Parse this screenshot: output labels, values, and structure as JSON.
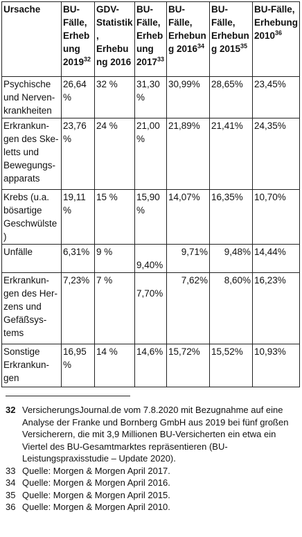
{
  "table": {
    "headers": [
      [
        "Ursache"
      ],
      [
        "BU-Fälle, Erhebung 2019",
        "32"
      ],
      [
        "GDV-Statistik, Erhebung 2016"
      ],
      [
        "BU-Fälle, Erhebung 2017",
        "33"
      ],
      [
        "BU-Fälle, Erhebung 2016",
        "34"
      ],
      [
        "BU-Fälle, Erhebung 2015",
        "35"
      ],
      [
        "BU-Fälle, Erhebung 2010",
        "36"
      ]
    ],
    "rows": [
      {
        "cause": "Psychische und Nerven-krankheiten",
        "values": [
          "26,64%",
          "32 %",
          "31,30 %",
          "30,99%",
          "28,65%",
          "23,45%"
        ]
      },
      {
        "cause": "Erkrankun-gen des Ske-letts und Bewegungs-apparats",
        "values": [
          "23,76%",
          "24 %",
          "21,00 %",
          "21,89%",
          "21,41%",
          "24,35%"
        ]
      },
      {
        "cause": "Krebs (u.a. bösartige Geschwülste)",
        "values": [
          "19,11%",
          "15 %",
          "15,90 %",
          "14,07%",
          "16,35%",
          "10,70%"
        ]
      },
      {
        "cause": "Unfälle",
        "values": [
          "6,31%",
          "9 %",
          "9,40%",
          "9,71%",
          "9,48%",
          "14,44%"
        ]
      },
      {
        "cause": "Erkrankun-gen des Her-zens und Gefäßsys-tems",
        "values": [
          "7,23%",
          "7 %",
          "7,70%",
          "7,62%",
          "8,60%",
          "16,23%"
        ]
      },
      {
        "cause": "Sonstige Erkrankun-gen",
        "values": [
          "16,95%",
          "14 %",
          "14,6%",
          "15,72%",
          "15,52%",
          "10,93%"
        ]
      }
    ]
  },
  "footnotes": [
    {
      "num": "32",
      "text": "VersicherungsJournal.de vom 7.8.2020 mit Bezugnahme auf eine Analyse der Franke und Bornberg GmbH aus 2019 bei fünf großen Versicherern, die mit 3,9 Millionen BU-Versicherten ein etwa ein Viertel des BU-Gesamtmarktes repräsentieren (BU-Leistungspraxisstudie – Update 2020)."
    },
    {
      "num": "33",
      "text": "Quelle: Morgen & Morgen April 2017."
    },
    {
      "num": "34",
      "text": "Quelle: Morgen & Morgen April 2016."
    },
    {
      "num": "35",
      "text": "Quelle: Morgen & Morgen April 2015."
    },
    {
      "num": "36",
      "text": "Quelle: Morgen & Morgen April 2010."
    }
  ]
}
